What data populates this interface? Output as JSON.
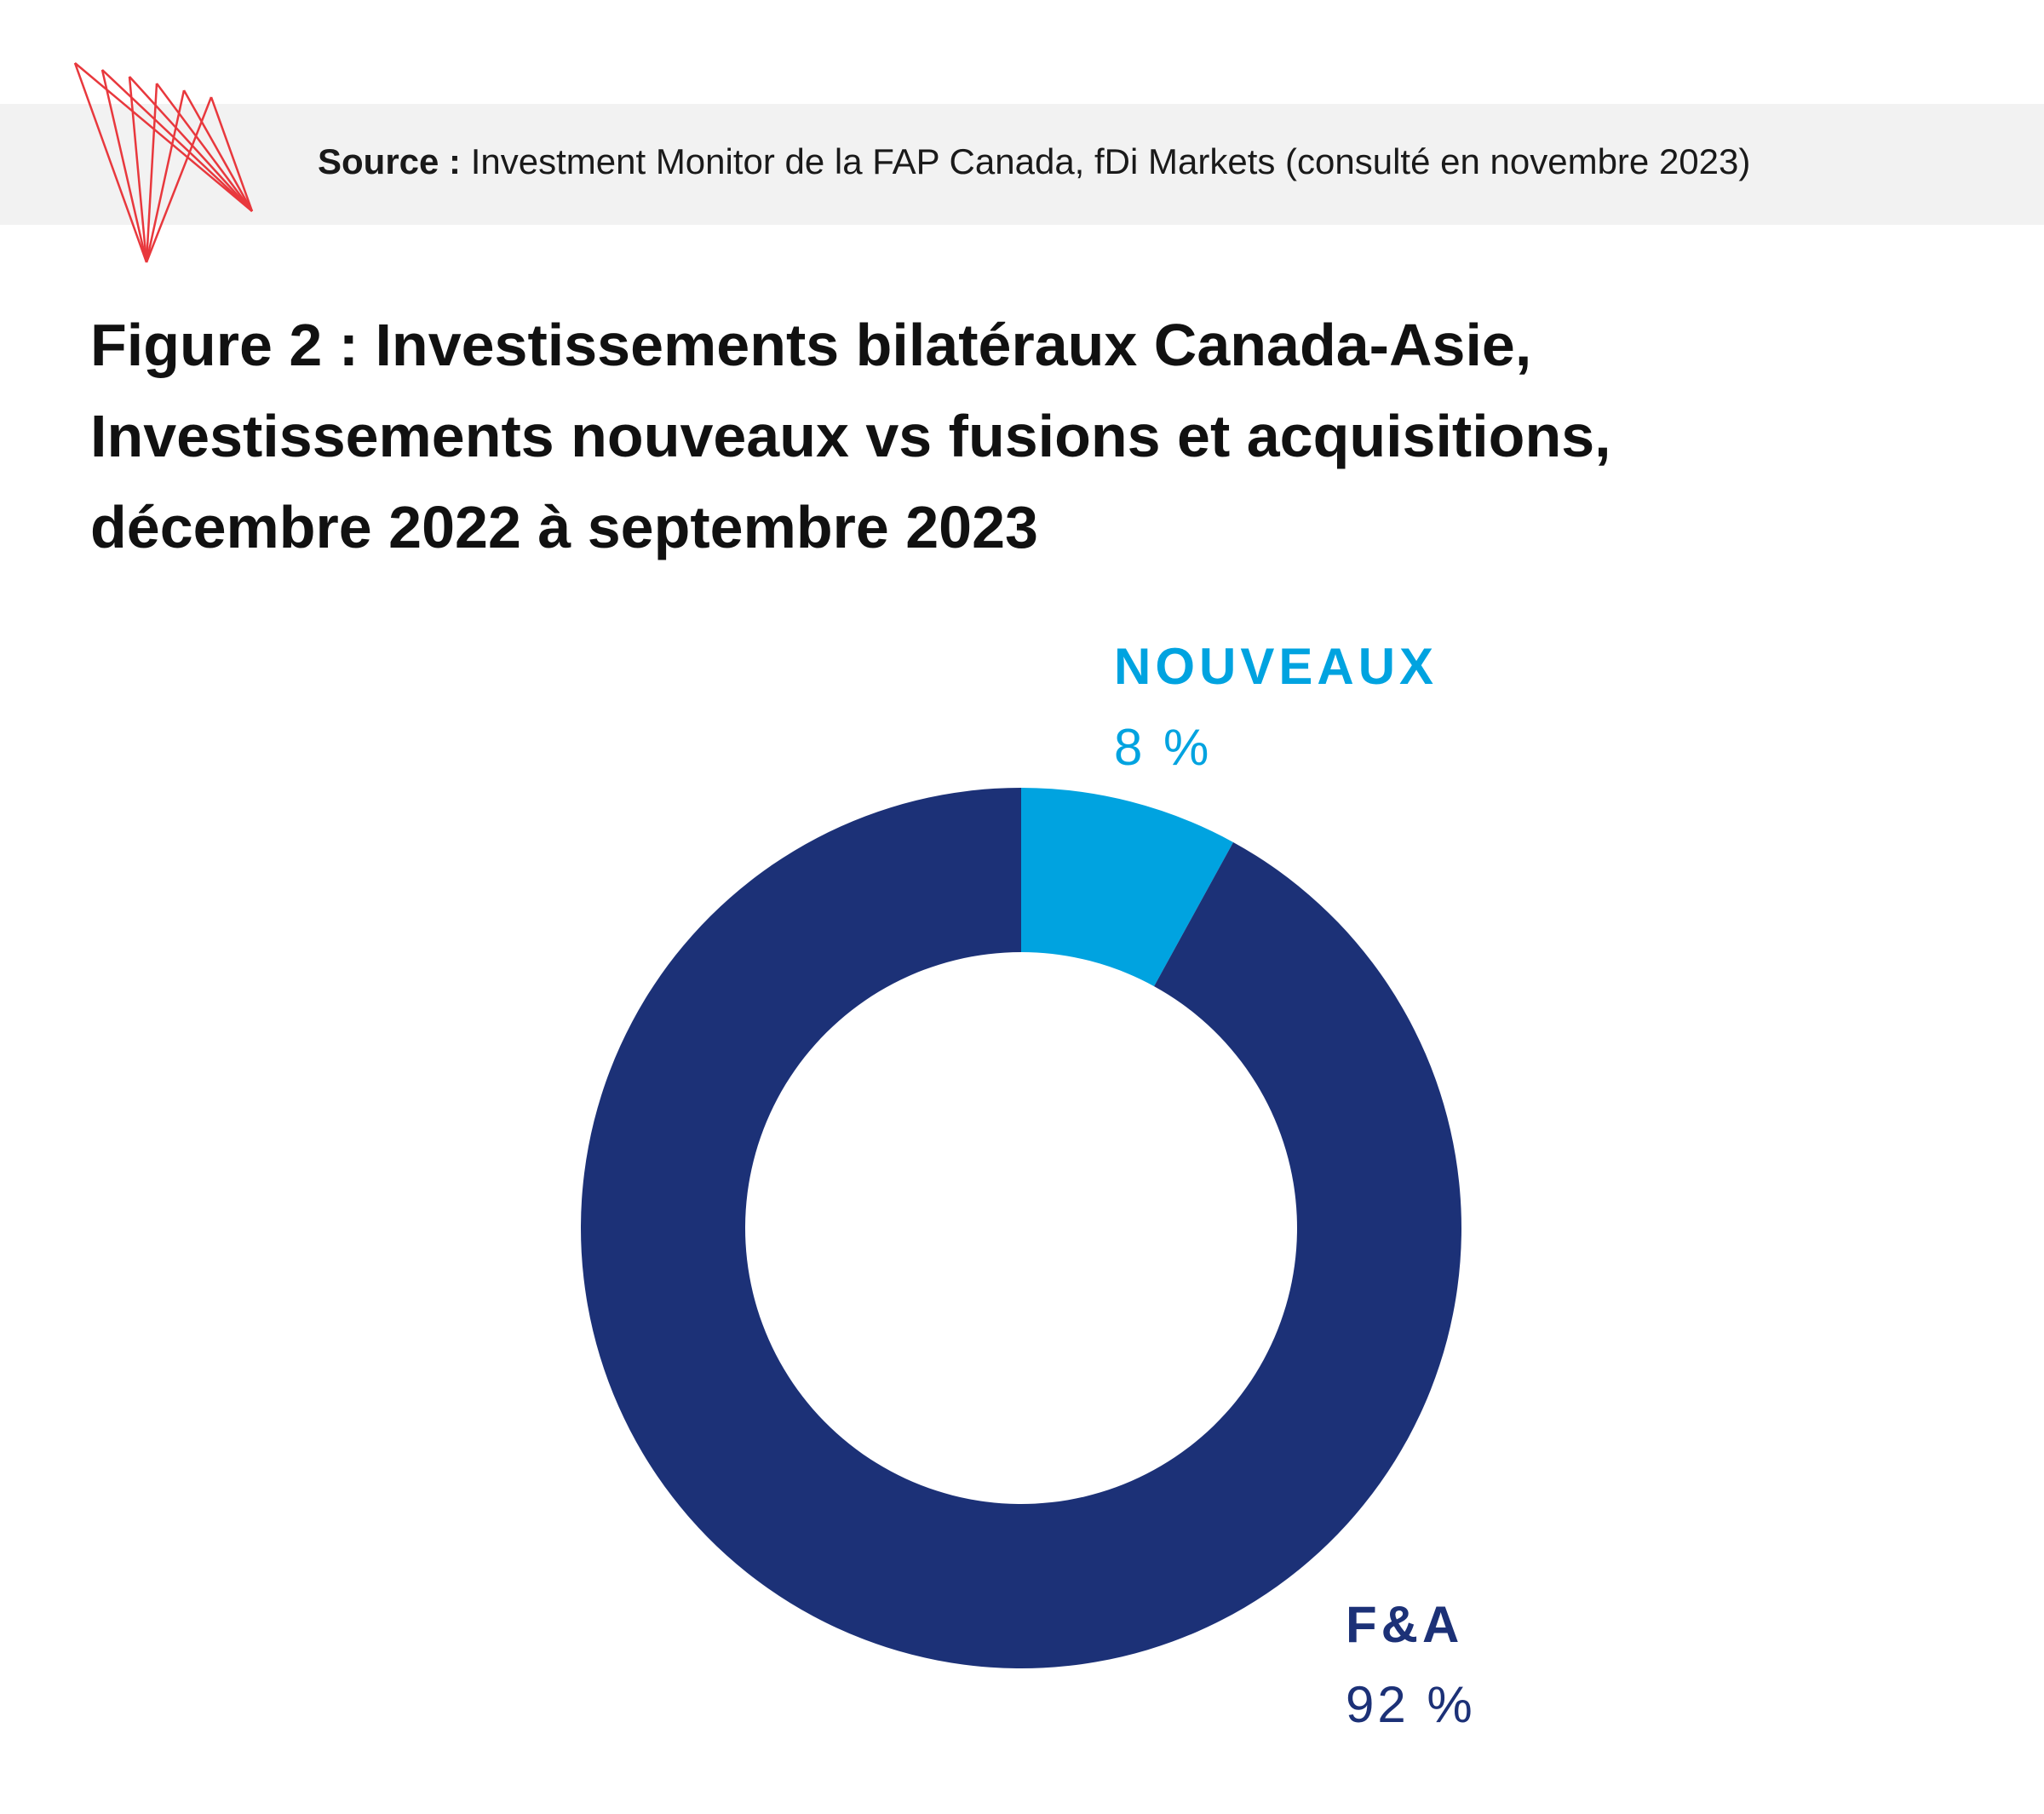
{
  "source": {
    "label": "Source :",
    "text": "Investment Monitor de la FAP Canada, fDi Markets (consulté en novembre 2023)"
  },
  "title_lines": [
    "Figure 2 : Investissements bilatéraux Canada-Asie,",
    "Investissements nouveaux vs fusions et acquisitions,",
    "décembre 2022 à septembre 2023"
  ],
  "colors": {
    "nouveaux": "#00a3e0",
    "fa": "#1c3177",
    "logo": "#e8383d",
    "source_bar": "#f2f2f2"
  },
  "chart_data": {
    "type": "pie",
    "donut": true,
    "slices": [
      {
        "label": "NOUVEAUX",
        "value": 8,
        "value_label": "8 %"
      },
      {
        "label": "F&A",
        "value": 92,
        "value_label": "92 %"
      }
    ]
  }
}
